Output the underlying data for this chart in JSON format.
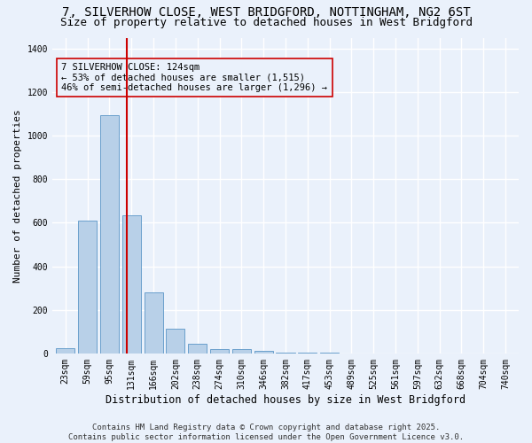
{
  "title_line1": "7, SILVERHOW CLOSE, WEST BRIDGFORD, NOTTINGHAM, NG2 6ST",
  "title_line2": "Size of property relative to detached houses in West Bridgford",
  "xlabel": "Distribution of detached houses by size in West Bridgford",
  "ylabel": "Number of detached properties",
  "categories": [
    "23sqm",
    "59sqm",
    "95sqm",
    "131sqm",
    "166sqm",
    "202sqm",
    "238sqm",
    "274sqm",
    "310sqm",
    "346sqm",
    "382sqm",
    "417sqm",
    "453sqm",
    "489sqm",
    "525sqm",
    "561sqm",
    "597sqm",
    "632sqm",
    "668sqm",
    "704sqm",
    "740sqm"
  ],
  "values": [
    25,
    610,
    1095,
    635,
    280,
    115,
    45,
    20,
    20,
    12,
    5,
    3,
    2,
    1,
    1,
    1,
    1,
    1,
    0,
    0,
    0
  ],
  "bar_color": "#b8d0e8",
  "bar_edge_color": "#6aa0cc",
  "vline_color": "#cc0000",
  "annotation_text": "7 SILVERHOW CLOSE: 124sqm\n← 53% of detached houses are smaller (1,515)\n46% of semi-detached houses are larger (1,296) →",
  "annotation_fontsize": 7.5,
  "ylim": [
    0,
    1450
  ],
  "yticks": [
    0,
    200,
    400,
    600,
    800,
    1000,
    1200,
    1400
  ],
  "bg_color": "#eaf1fb",
  "grid_color": "#ffffff",
  "footer1": "Contains HM Land Registry data © Crown copyright and database right 2025.",
  "footer2": "Contains public sector information licensed under the Open Government Licence v3.0.",
  "title_fontsize": 10,
  "subtitle_fontsize": 9,
  "xlabel_fontsize": 8.5,
  "ylabel_fontsize": 8,
  "tick_fontsize": 7,
  "footer_fontsize": 6.5
}
